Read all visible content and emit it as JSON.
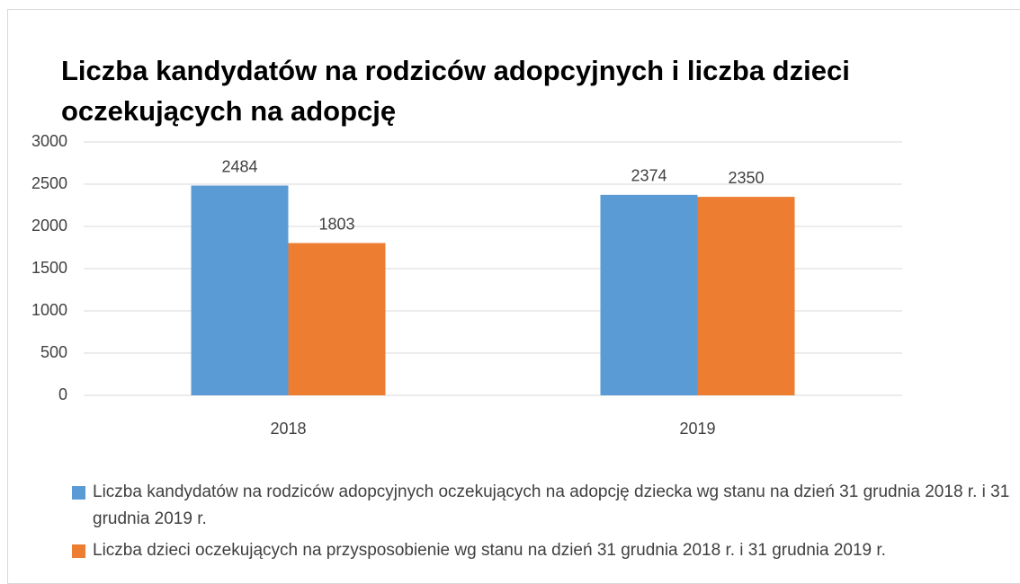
{
  "chart_data": {
    "type": "bar",
    "title": "Liczba kandydatów na rodziców adopcyjnych i liczba dzieci oczekujących na adopcję",
    "categories": [
      "2018",
      "2019"
    ],
    "series": [
      {
        "name": "Liczba kandydatów na rodziców adopcyjnych oczekujących na adopcję dziecka wg stanu na dzień 31 grudnia 2018 r. i 31 grudnia 2019 r.",
        "color": "#5b9bd5",
        "values": [
          2484,
          2374
        ]
      },
      {
        "name": "Liczba dzieci oczekujących na przysposobienie wg stanu na dzień 31 grudnia 2018 r. i 31 grudnia 2019 r.",
        "color": "#ed7d31",
        "values": [
          1803,
          2350
        ]
      }
    ],
    "ylim": [
      0,
      3000
    ],
    "yticks": [
      0,
      500,
      1000,
      1500,
      2000,
      2500,
      3000
    ],
    "grid": true,
    "legend": "bottom"
  }
}
